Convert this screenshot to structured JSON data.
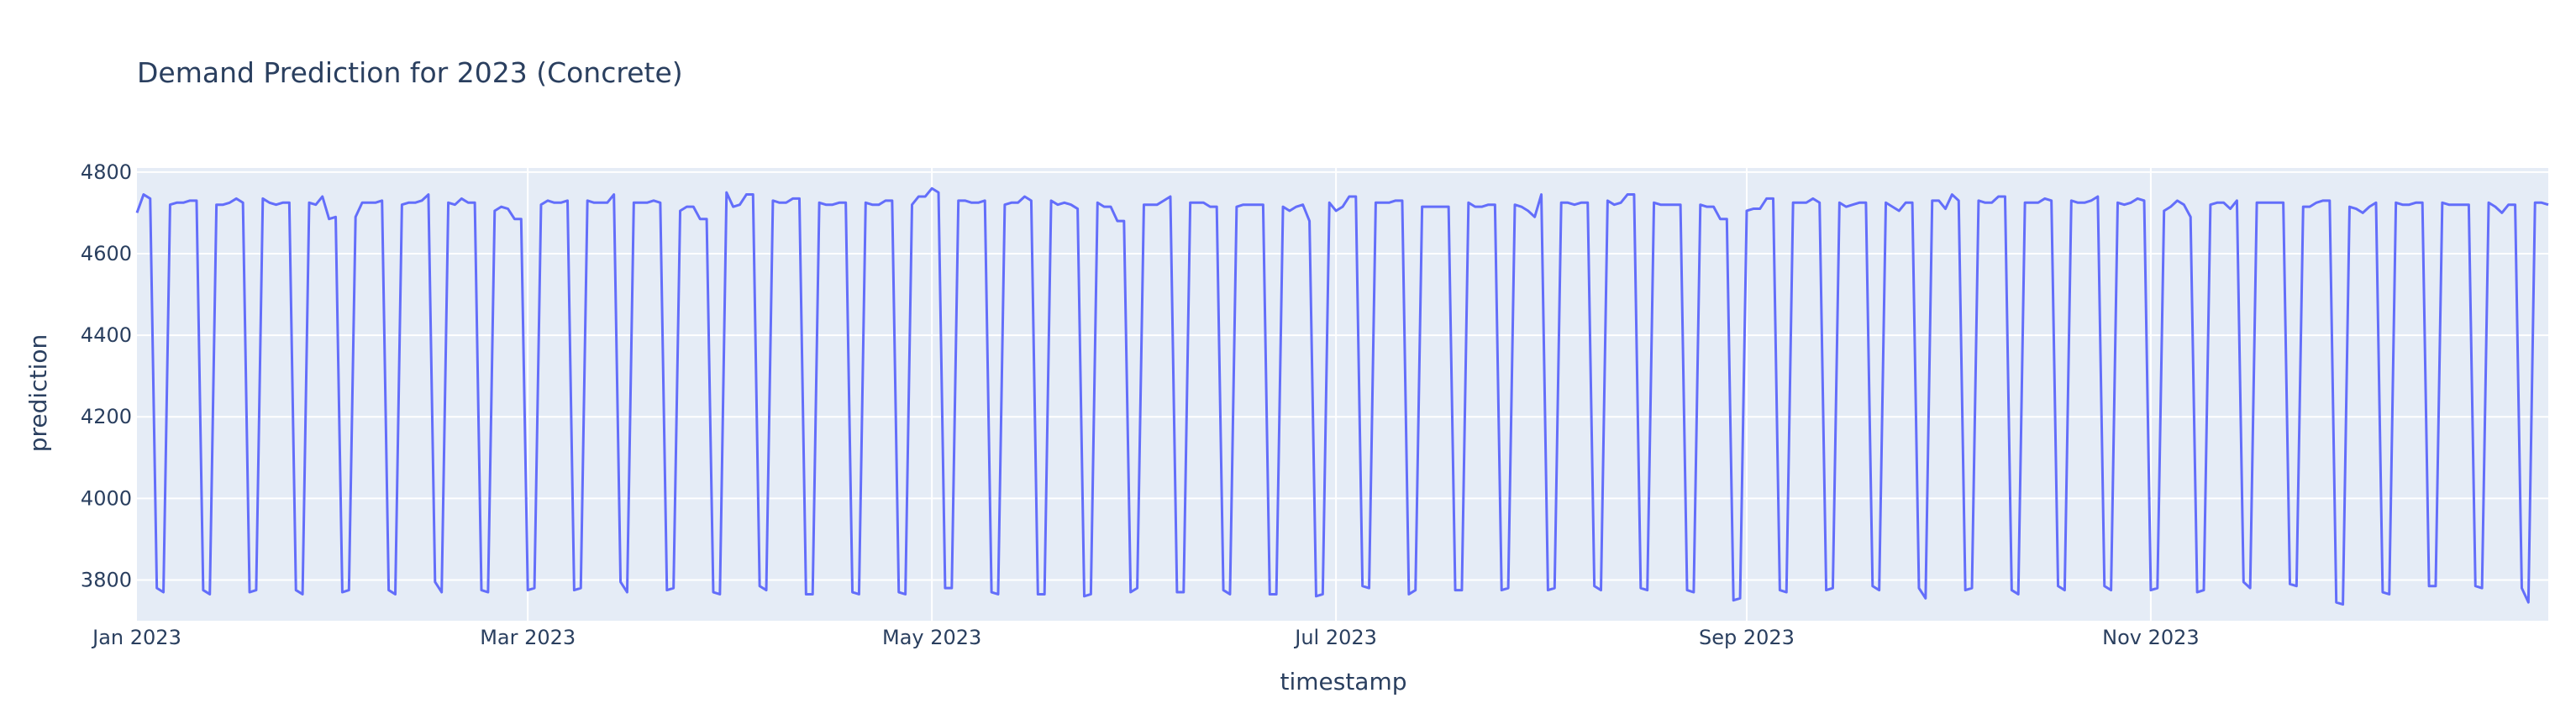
{
  "chart_data": {
    "type": "line",
    "title": "Demand Prediction for 2023 (Concrete)",
    "xlabel": "timestamp",
    "ylabel": "prediction",
    "x_range": [
      "2023-01-01",
      "2023-12-31"
    ],
    "ylim": [
      3700,
      4810
    ],
    "y_ticks": [
      3800,
      4000,
      4200,
      4400,
      4600,
      4800
    ],
    "x_ticks": [
      {
        "date": "2023-01-01",
        "label": "Jan 2023"
      },
      {
        "date": "2023-03-01",
        "label": "Mar 2023"
      },
      {
        "date": "2023-05-01",
        "label": "May 2023"
      },
      {
        "date": "2023-07-01",
        "label": "Jul 2023"
      },
      {
        "date": "2023-09-01",
        "label": "Sep 2023"
      },
      {
        "date": "2023-11-01",
        "label": "Nov 2023"
      }
    ],
    "grid": true,
    "legend": "none",
    "colors": {
      "plot_bg": "#e5ecf6",
      "grid": "#ffffff",
      "line": "#636efa",
      "text": "#2a3f5f"
    },
    "series": [
      {
        "x_start": "2023-01-01",
        "x_step_days": 1,
        "values": [
          4700,
          4745,
          4735,
          3780,
          3770,
          4720,
          4725,
          4725,
          4730,
          4730,
          3775,
          3765,
          4720,
          4720,
          4725,
          4735,
          4725,
          3770,
          3775,
          4735,
          4725,
          4720,
          4725,
          4725,
          3775,
          3765,
          4725,
          4720,
          4740,
          4685,
          4690,
          3770,
          3775,
          4690,
          4725,
          4725,
          4725,
          4730,
          3775,
          3765,
          4720,
          4725,
          4725,
          4730,
          4745,
          3795,
          3770,
          4725,
          4720,
          4735,
          4725,
          4725,
          3775,
          3770,
          4705,
          4715,
          4710,
          4685,
          4685,
          3775,
          3780,
          4720,
          4730,
          4725,
          4725,
          4730,
          3775,
          3780,
          4730,
          4725,
          4725,
          4725,
          4745,
          3795,
          3770,
          4725,
          4725,
          4725,
          4730,
          4725,
          3775,
          3780,
          4705,
          4715,
          4715,
          4685,
          4685,
          3770,
          3765,
          4750,
          4715,
          4720,
          4745,
          4745,
          3785,
          3775,
          4730,
          4725,
          4725,
          4735,
          4735,
          3765,
          3765,
          4725,
          4720,
          4720,
          4725,
          4725,
          3770,
          3765,
          4725,
          4720,
          4720,
          4730,
          4730,
          3770,
          3765,
          4720,
          4740,
          4740,
          4760,
          4750,
          3780,
          3780,
          4730,
          4730,
          4725,
          4725,
          4730,
          3770,
          3765,
          4720,
          4725,
          4725,
          4740,
          4730,
          3765,
          3765,
          4730,
          4720,
          4725,
          4720,
          4710,
          3760,
          3765,
          4725,
          4715,
          4715,
          4680,
          4680,
          3770,
          3780,
          4720,
          4720,
          4720,
          4730,
          4740,
          3770,
          3770,
          4725,
          4725,
          4725,
          4715,
          4715,
          3775,
          3765,
          4715,
          4720,
          4720,
          4720,
          4720,
          3765,
          3765,
          4715,
          4705,
          4715,
          4720,
          4680,
          3760,
          3765,
          4725,
          4705,
          4715,
          4740,
          4740,
          3785,
          3780,
          4725,
          4725,
          4725,
          4730,
          4730,
          3765,
          3775,
          4715,
          4715,
          4715,
          4715,
          4715,
          3775,
          3775,
          4725,
          4715,
          4715,
          4720,
          4720,
          3775,
          3780,
          4720,
          4715,
          4705,
          4690,
          4745,
          3775,
          3780,
          4725,
          4725,
          4720,
          4725,
          4725,
          3785,
          3775,
          4730,
          4720,
          4725,
          4745,
          4745,
          3780,
          3775,
          4725,
          4720,
          4720,
          4720,
          4720,
          3775,
          3770,
          4720,
          4715,
          4715,
          4685,
          4685,
          3750,
          3755,
          4705,
          4710,
          4710,
          4735,
          4735,
          3775,
          3770,
          4725,
          4725,
          4725,
          4735,
          4725,
          3775,
          3780,
          4725,
          4715,
          4720,
          4725,
          4725,
          3785,
          3775,
          4725,
          4715,
          4705,
          4725,
          4725,
          3780,
          3755,
          4730,
          4730,
          4710,
          4745,
          4730,
          3775,
          3780,
          4730,
          4725,
          4725,
          4740,
          4740,
          3775,
          3765,
          4725,
          4725,
          4725,
          4735,
          4730,
          3785,
          3775,
          4730,
          4725,
          4725,
          4730,
          4740,
          3785,
          3775,
          4725,
          4720,
          4725,
          4735,
          4730,
          3775,
          3780,
          4705,
          4715,
          4730,
          4720,
          4690,
          3770,
          3775,
          4720,
          4725,
          4725,
          4710,
          4730,
          3795,
          3780,
          4725,
          4725,
          4725,
          4725,
          4725,
          3790,
          3785,
          4715,
          4715,
          4725,
          4730,
          4730,
          3745,
          3740,
          4715,
          4710,
          4700,
          4715,
          4725,
          3770,
          3765,
          4725,
          4720,
          4720,
          4725,
          4725,
          3785,
          3785,
          4725,
          4720,
          4720,
          4720,
          4720,
          3785,
          3780,
          4725,
          4715,
          4700,
          4720,
          4720,
          3780,
          3745,
          4725,
          4725,
          4720
        ]
      }
    ]
  }
}
